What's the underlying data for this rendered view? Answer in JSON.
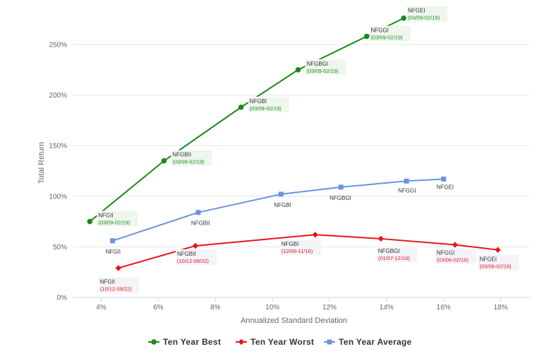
{
  "chart_data": {
    "type": "line",
    "xlabel": "Annualized Standard Deviation",
    "ylabel": "Total Return",
    "xlim": [
      3,
      19
    ],
    "ylim": [
      0,
      280
    ],
    "x_ticks": [
      "4%",
      "6%",
      "8%",
      "10%",
      "12%",
      "14%",
      "16%",
      "18%"
    ],
    "x_tick_values": [
      4,
      6,
      8,
      10,
      12,
      14,
      16,
      18
    ],
    "y_ticks": [
      "0%",
      "50%",
      "100%",
      "150%",
      "200%",
      "250%"
    ],
    "y_tick_values": [
      0,
      50,
      100,
      150,
      200,
      250
    ],
    "grid": "horizontal",
    "legend_position": "bottom",
    "series": [
      {
        "name": "Ten Year Best",
        "color": "#1a8a1a",
        "marker": "circle",
        "points": [
          {
            "x": 3.6,
            "y": 75,
            "label": "NFGII",
            "date": "(03/09-02/19)"
          },
          {
            "x": 6.2,
            "y": 135,
            "label": "NFGBII",
            "date": "(03/09-02/19)"
          },
          {
            "x": 8.9,
            "y": 188,
            "label": "NFGBI",
            "date": "(03/09-02/19)"
          },
          {
            "x": 10.9,
            "y": 225,
            "label": "NFGBGI",
            "date": "(03/09-02/19)"
          },
          {
            "x": 13.3,
            "y": 258,
            "label": "NFGGI",
            "date": "(03/09-02/19)"
          },
          {
            "x": 14.6,
            "y": 276,
            "label": "NFGEI",
            "date": "(03/09-02/19)"
          }
        ]
      },
      {
        "name": "Ten Year Worst",
        "color": "#e8141a",
        "marker": "diamond",
        "points": [
          {
            "x": 4.6,
            "y": 29,
            "label": "NFGII",
            "date": "(10/12-09/22)"
          },
          {
            "x": 7.3,
            "y": 51,
            "label": "NFGBII",
            "date": "(10/12-09/22)"
          },
          {
            "x": 11.5,
            "y": 62,
            "label": "NFGBI",
            "date": "(12/06-11/16)"
          },
          {
            "x": 13.8,
            "y": 58,
            "label": "NFGBGI",
            "date": "(01/07-12/16)"
          },
          {
            "x": 16.4,
            "y": 52,
            "label": "NFGGI",
            "date": "(03/06-02/16)"
          },
          {
            "x": 17.9,
            "y": 47,
            "label": "NFGEI",
            "date": "(03/06-02/16)"
          }
        ]
      },
      {
        "name": "Ten Year Average",
        "color": "#6b93e0",
        "marker": "square",
        "points": [
          {
            "x": 4.4,
            "y": 56,
            "label": "NFGII",
            "date": ""
          },
          {
            "x": 7.4,
            "y": 84,
            "label": "NFGBII",
            "date": ""
          },
          {
            "x": 10.3,
            "y": 102,
            "label": "NFGBI",
            "date": ""
          },
          {
            "x": 12.4,
            "y": 109,
            "label": "NFGBGI",
            "date": ""
          },
          {
            "x": 14.7,
            "y": 115,
            "label": "NFGGI",
            "date": ""
          },
          {
            "x": 16.0,
            "y": 117,
            "label": "NFGEI",
            "date": ""
          }
        ]
      }
    ]
  }
}
